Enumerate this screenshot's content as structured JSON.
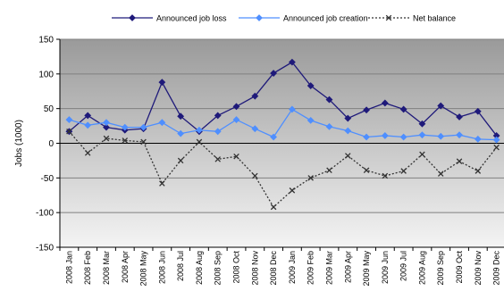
{
  "chart_data": {
    "type": "line",
    "title": "",
    "xlabel": "",
    "ylabel": "Jobs (1000)",
    "ylim": [
      -150,
      150
    ],
    "yticks": [
      150,
      100,
      50,
      0,
      -50,
      -100,
      -150
    ],
    "grid": true,
    "legend_position": "top",
    "categories": [
      "2008 Jan",
      "2008 Feb",
      "2008 Mar",
      "2008 Apr",
      "2008 May",
      "2008 Jun",
      "2008 Jul",
      "2008 Aug",
      "2008 Sep",
      "2008 Oct",
      "2008 Nov",
      "2008 Dec",
      "2009 Jan",
      "2009 Feb",
      "2009 Mar",
      "2009 Apr",
      "2009 May",
      "2009 Jun",
      "2009 Jul",
      "2009 Aug",
      "2009 Sep",
      "2009 Oct",
      "2009 Nov",
      "2009 Dec"
    ],
    "series": [
      {
        "name": "Announced job loss",
        "color": "#1f1a7a",
        "marker": "diamond",
        "line": "solid",
        "values": [
          17,
          40,
          23,
          19,
          21,
          88,
          39,
          17,
          40,
          53,
          68,
          101,
          117,
          83,
          63,
          36,
          48,
          58,
          49,
          28,
          54,
          38,
          46,
          11
        ]
      },
      {
        "name": "Announced job creation",
        "color": "#4f8fff",
        "marker": "diamond",
        "line": "solid",
        "values": [
          34,
          26,
          30,
          23,
          23,
          30,
          14,
          19,
          17,
          34,
          21,
          9,
          49,
          33,
          24,
          18,
          9,
          11,
          9,
          12,
          10,
          12,
          6,
          5
        ]
      },
      {
        "name": "Net balance",
        "color": "#333333",
        "marker": "x",
        "line": "dotted",
        "values": [
          17,
          -14,
          7,
          4,
          2,
          -58,
          -25,
          2,
          -23,
          -19,
          -47,
          -92,
          -68,
          -50,
          -39,
          -18,
          -39,
          -47,
          -40,
          -16,
          -44,
          -26,
          -40,
          -6
        ]
      }
    ]
  }
}
